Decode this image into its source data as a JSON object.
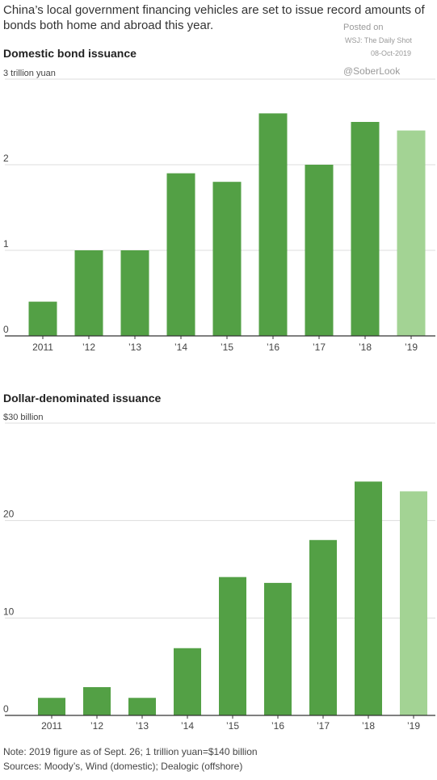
{
  "headline": "China’s local government financing vehicles are set to issue record amounts of bonds both home and abroad this year.",
  "watermark": {
    "posted_on": "Posted on",
    "source": "WSJ: The Daily Shot",
    "date": "08-Oct-2019",
    "handle": "@SoberLook"
  },
  "colors": {
    "bar": "#53a045",
    "bar_highlight": "#a3d394",
    "grid": "#dddddd",
    "axis": "#333333"
  },
  "chart_data": [
    {
      "type": "bar",
      "title": "Domestic bond issuance",
      "unit_label": "3 trillion yuan",
      "categories": [
        "2011",
        "’12",
        "’13",
        "’14",
        "’15",
        "’16",
        "’17",
        "’18",
        "’19"
      ],
      "values": [
        0.4,
        1.0,
        1.0,
        1.9,
        1.8,
        2.6,
        2.0,
        2.5,
        2.4
      ],
      "ylim": [
        0,
        3
      ],
      "yticks": [
        "0",
        "1",
        "2"
      ],
      "highlight_last": true,
      "grid": true
    },
    {
      "type": "bar",
      "title": "Dollar-denominated issuance",
      "unit_label": "$30 billion",
      "categories": [
        "2011",
        "’12",
        "’13",
        "’14",
        "’15",
        "’16",
        "’17",
        "’18",
        "’19"
      ],
      "values": [
        1.8,
        2.9,
        1.8,
        6.9,
        14.2,
        13.6,
        18.0,
        24.0,
        23.0
      ],
      "ylim": [
        0,
        30
      ],
      "yticks": [
        "0",
        "10",
        "20"
      ],
      "highlight_last": true,
      "grid": true
    }
  ],
  "footer": {
    "note": "Note: 2019 figure as of Sept. 26; 1 trillion yuan=$140 billion",
    "sources": "Sources: Moody’s, Wind (domestic); Dealogic (offshore)"
  }
}
